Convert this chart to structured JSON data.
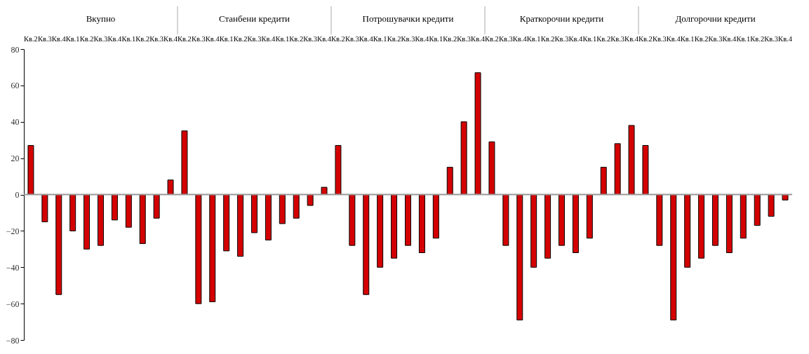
{
  "chart_data": {
    "type": "bar",
    "categories": [
      "Кв.2",
      "Кв.3",
      "Кв.4",
      "Кв.1",
      "Кв.2",
      "Кв.3",
      "Кв.4",
      "Кв.1",
      "Кв.2",
      "Кв.3",
      "Кв.4",
      "Кв.2",
      "Кв.3",
      "Кв.4",
      "Кв.1",
      "Кв.2",
      "Кв.3",
      "Кв.4",
      "Кв.1",
      "Кв.2",
      "Кв.3",
      "Кв.4",
      "Кв.2",
      "Кв.3",
      "Кв.4",
      "Кв.1",
      "Кв.2",
      "Кв.3",
      "Кв.4",
      "Кв.1",
      "Кв.2",
      "Кв.3",
      "Кв.4",
      "Кв.2",
      "Кв.3",
      "Кв.4",
      "Кв.1",
      "Кв.2",
      "Кв.3",
      "Кв.4",
      "Кв.1",
      "Кв.2",
      "Кв.3",
      "Кв.4",
      "Кв.2",
      "Кв.3",
      "Кв.4",
      "Кв.1",
      "Кв.2",
      "Кв.3",
      "Кв.4",
      "Кв.1",
      "Кв.2",
      "Кв.3",
      "Кв.4"
    ],
    "values": [
      27,
      -15,
      -55,
      -20,
      -30,
      -28,
      -14,
      -18,
      -27,
      -13,
      8,
      35,
      -60,
      -59,
      -31,
      -34,
      -21,
      -25,
      -16,
      -13,
      -6,
      4,
      27,
      -28,
      -55,
      -40,
      -35,
      -28,
      -32,
      -24,
      15,
      40,
      67,
      29,
      -28,
      -69,
      -40,
      -35,
      -28,
      -32,
      -24,
      15,
      28,
      38,
      27,
      -28,
      -69,
      -40,
      -35,
      -28,
      -32,
      -24,
      -17,
      -12,
      -3
    ],
    "color": "#d40000",
    "annotations": [
      "Вкупно",
      "Станбени кредити",
      "Потрошувачки кредити",
      "Краткорочни кредити",
      "Долгорочни кредити"
    ],
    "ylim": [
      -80,
      80
    ],
    "yticks": [
      -80,
      -60,
      -40,
      -20,
      0,
      20,
      40,
      60,
      80
    ],
    "ref_lines": [
      {
        "axis": "y",
        "value": 0,
        "color": "#999999"
      }
    ]
  }
}
